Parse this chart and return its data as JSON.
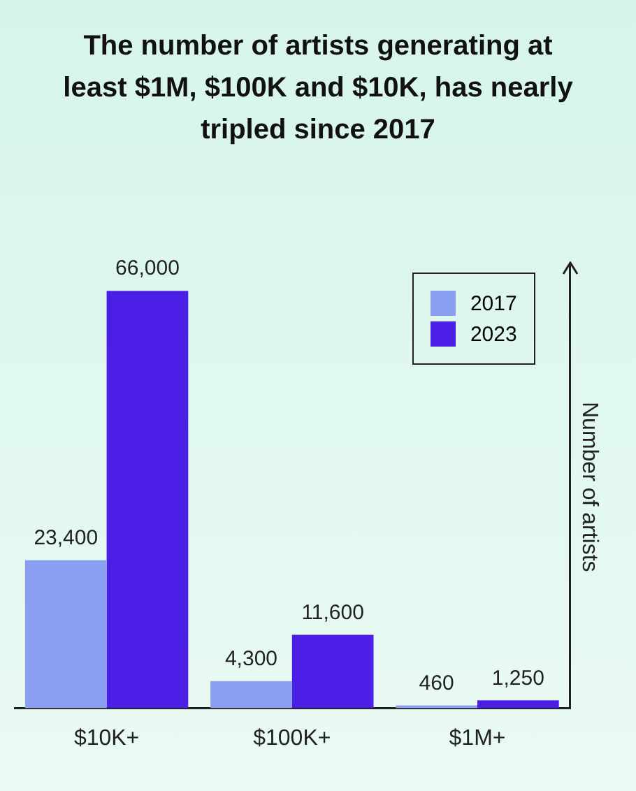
{
  "chart_data": {
    "type": "bar",
    "title": "The number of artists generating at least $1M, $100K and $10K, has nearly tripled since 2017",
    "ylabel": "Number of artists",
    "categories": [
      "$10K+",
      "$100K+",
      "$1M+"
    ],
    "series": [
      {
        "name": "2017",
        "color": "#8b9ff2",
        "values": [
          23400,
          4300,
          460
        ],
        "value_labels": [
          "23,400",
          "4,300",
          "460"
        ]
      },
      {
        "name": "2023",
        "color": "#4b1fe6",
        "values": [
          66000,
          11600,
          1250
        ],
        "value_labels": [
          "66,000",
          "11,600",
          "1,250"
        ]
      }
    ],
    "legend": "top right",
    "grid": false
  }
}
